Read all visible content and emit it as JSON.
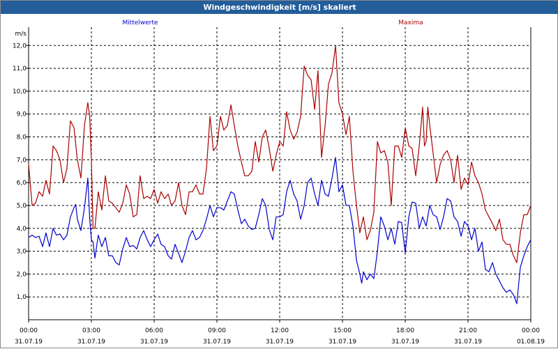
{
  "window": {
    "title": "Windgeschwindigkeit [m/s] skaliert"
  },
  "chart_data": {
    "type": "line",
    "title": "Windgeschwindigkeit [m/s] skaliert",
    "ylabel": "m/s",
    "ylim": [
      0,
      12.8
    ],
    "yticks": [
      1.0,
      2.0,
      3.0,
      4.0,
      5.0,
      6.0,
      7.0,
      8.0,
      9.0,
      10.0,
      11.0,
      12.0
    ],
    "ytick_labels": [
      "1,0",
      "2,0",
      "3,0",
      "4,0",
      "5,0",
      "6,0",
      "7,0",
      "8,0",
      "9,0",
      "10,0",
      "11,0",
      "12,0"
    ],
    "xlim_hours": [
      0,
      24
    ],
    "grid": true,
    "x_ticks": [
      {
        "h": 0,
        "time": "00:00",
        "date": "31.07.19"
      },
      {
        "h": 3,
        "time": "03:00",
        "date": "31.07.19"
      },
      {
        "h": 6,
        "time": "06:00",
        "date": "31.07.19"
      },
      {
        "h": 9,
        "time": "09:00",
        "date": "31.07.19"
      },
      {
        "h": 12,
        "time": "12:00",
        "date": "31.07.19"
      },
      {
        "h": 15,
        "time": "15:00",
        "date": "31.07.19"
      },
      {
        "h": 18,
        "time": "18:00",
        "date": "31.07.19"
      },
      {
        "h": 21,
        "time": "21:00",
        "date": "31.07.19"
      },
      {
        "h": 24,
        "time": "00:00",
        "date": "01.08.19"
      }
    ],
    "series": [
      {
        "name": "Mittelwerte",
        "color": "#0000cc",
        "points": [
          [
            0.0,
            3.6
          ],
          [
            0.17,
            3.7
          ],
          [
            0.33,
            3.6
          ],
          [
            0.5,
            3.65
          ],
          [
            0.67,
            3.2
          ],
          [
            0.83,
            3.8
          ],
          [
            1.0,
            3.2
          ],
          [
            1.17,
            4.0
          ],
          [
            1.33,
            3.7
          ],
          [
            1.5,
            3.75
          ],
          [
            1.67,
            3.5
          ],
          [
            1.83,
            3.7
          ],
          [
            2.0,
            4.5
          ],
          [
            2.17,
            4.9
          ],
          [
            2.25,
            5.05
          ],
          [
            2.33,
            4.4
          ],
          [
            2.5,
            3.9
          ],
          [
            2.67,
            4.9
          ],
          [
            2.83,
            6.2
          ],
          [
            2.92,
            4.4
          ],
          [
            3.0,
            3.5
          ],
          [
            3.08,
            3.4
          ],
          [
            3.17,
            2.7
          ],
          [
            3.33,
            3.7
          ],
          [
            3.5,
            3.2
          ],
          [
            3.67,
            3.6
          ],
          [
            3.83,
            2.8
          ],
          [
            4.0,
            2.8
          ],
          [
            4.17,
            2.5
          ],
          [
            4.33,
            2.4
          ],
          [
            4.5,
            3.1
          ],
          [
            4.67,
            3.6
          ],
          [
            4.83,
            3.2
          ],
          [
            5.0,
            3.25
          ],
          [
            5.17,
            3.1
          ],
          [
            5.33,
            3.6
          ],
          [
            5.5,
            3.9
          ],
          [
            5.67,
            3.5
          ],
          [
            5.83,
            3.2
          ],
          [
            6.0,
            3.5
          ],
          [
            6.17,
            3.75
          ],
          [
            6.33,
            3.3
          ],
          [
            6.5,
            3.2
          ],
          [
            6.67,
            2.8
          ],
          [
            6.83,
            2.65
          ],
          [
            7.0,
            3.3
          ],
          [
            7.17,
            2.9
          ],
          [
            7.33,
            2.5
          ],
          [
            7.5,
            3.0
          ],
          [
            7.67,
            3.6
          ],
          [
            7.83,
            3.9
          ],
          [
            8.0,
            3.5
          ],
          [
            8.17,
            3.6
          ],
          [
            8.33,
            3.9
          ],
          [
            8.5,
            4.4
          ],
          [
            8.67,
            5.0
          ],
          [
            8.83,
            4.5
          ],
          [
            9.0,
            4.9
          ],
          [
            9.17,
            4.9
          ],
          [
            9.33,
            4.8
          ],
          [
            9.5,
            5.2
          ],
          [
            9.67,
            5.6
          ],
          [
            9.83,
            5.5
          ],
          [
            10.0,
            4.8
          ],
          [
            10.17,
            4.2
          ],
          [
            10.33,
            4.4
          ],
          [
            10.5,
            4.1
          ],
          [
            10.67,
            3.95
          ],
          [
            10.83,
            4.0
          ],
          [
            11.0,
            4.6
          ],
          [
            11.17,
            5.3
          ],
          [
            11.33,
            5.0
          ],
          [
            11.5,
            3.95
          ],
          [
            11.67,
            3.5
          ],
          [
            11.83,
            4.5
          ],
          [
            12.0,
            4.5
          ],
          [
            12.17,
            4.6
          ],
          [
            12.33,
            5.6
          ],
          [
            12.5,
            6.1
          ],
          [
            12.67,
            5.5
          ],
          [
            12.83,
            5.2
          ],
          [
            13.0,
            4.4
          ],
          [
            13.17,
            5.0
          ],
          [
            13.33,
            6.0
          ],
          [
            13.5,
            6.2
          ],
          [
            13.67,
            5.5
          ],
          [
            13.83,
            5.0
          ],
          [
            14.0,
            6.1
          ],
          [
            14.17,
            5.5
          ],
          [
            14.33,
            5.4
          ],
          [
            14.5,
            6.2
          ],
          [
            14.67,
            7.1
          ],
          [
            14.83,
            5.6
          ],
          [
            15.0,
            5.9
          ],
          [
            15.17,
            5.0
          ],
          [
            15.33,
            5.0
          ],
          [
            15.5,
            4.1
          ],
          [
            15.67,
            2.6
          ],
          [
            15.83,
            2.0
          ],
          [
            15.92,
            1.6
          ],
          [
            16.0,
            2.1
          ],
          [
            16.17,
            1.75
          ],
          [
            16.33,
            2.0
          ],
          [
            16.5,
            1.8
          ],
          [
            16.67,
            3.0
          ],
          [
            16.83,
            4.5
          ],
          [
            17.0,
            4.1
          ],
          [
            17.17,
            3.5
          ],
          [
            17.33,
            4.0
          ],
          [
            17.5,
            3.3
          ],
          [
            17.67,
            4.3
          ],
          [
            17.83,
            4.25
          ],
          [
            18.0,
            2.9
          ],
          [
            18.17,
            4.5
          ],
          [
            18.33,
            5.15
          ],
          [
            18.5,
            5.1
          ],
          [
            18.67,
            4.0
          ],
          [
            18.83,
            4.5
          ],
          [
            19.0,
            4.1
          ],
          [
            19.17,
            5.0
          ],
          [
            19.33,
            4.6
          ],
          [
            19.5,
            4.5
          ],
          [
            19.67,
            3.95
          ],
          [
            19.83,
            4.5
          ],
          [
            20.0,
            5.3
          ],
          [
            20.17,
            5.2
          ],
          [
            20.33,
            4.5
          ],
          [
            20.5,
            4.3
          ],
          [
            20.67,
            3.65
          ],
          [
            20.83,
            4.3
          ],
          [
            21.0,
            4.1
          ],
          [
            21.17,
            3.5
          ],
          [
            21.33,
            4.0
          ],
          [
            21.5,
            3.0
          ],
          [
            21.67,
            3.4
          ],
          [
            21.83,
            2.2
          ],
          [
            22.0,
            2.1
          ],
          [
            22.17,
            2.5
          ],
          [
            22.33,
            2.0
          ],
          [
            22.5,
            1.7
          ],
          [
            22.67,
            1.4
          ],
          [
            22.83,
            1.2
          ],
          [
            23.0,
            1.3
          ],
          [
            23.17,
            1.1
          ],
          [
            23.33,
            0.7
          ],
          [
            23.5,
            2.3
          ],
          [
            23.67,
            2.8
          ],
          [
            23.83,
            3.2
          ],
          [
            24.0,
            3.5
          ]
        ]
      },
      {
        "name": "Maxima",
        "color": "#aa0000",
        "points": [
          [
            0.0,
            6.8
          ],
          [
            0.17,
            5.0
          ],
          [
            0.33,
            5.1
          ],
          [
            0.5,
            5.6
          ],
          [
            0.67,
            5.4
          ],
          [
            0.83,
            6.1
          ],
          [
            1.0,
            5.5
          ],
          [
            1.17,
            7.6
          ],
          [
            1.33,
            7.4
          ],
          [
            1.5,
            7.0
          ],
          [
            1.67,
            6.0
          ],
          [
            1.83,
            6.6
          ],
          [
            2.0,
            8.7
          ],
          [
            2.17,
            8.4
          ],
          [
            2.33,
            7.0
          ],
          [
            2.5,
            6.2
          ],
          [
            2.67,
            8.5
          ],
          [
            2.83,
            9.5
          ],
          [
            2.92,
            8.9
          ],
          [
            3.0,
            7.0
          ],
          [
            3.08,
            4.0
          ],
          [
            3.17,
            4.0
          ],
          [
            3.33,
            5.6
          ],
          [
            3.5,
            4.8
          ],
          [
            3.67,
            6.3
          ],
          [
            3.83,
            5.2
          ],
          [
            4.0,
            5.1
          ],
          [
            4.17,
            4.9
          ],
          [
            4.33,
            4.7
          ],
          [
            4.5,
            5.1
          ],
          [
            4.67,
            5.9
          ],
          [
            4.83,
            5.5
          ],
          [
            5.0,
            4.5
          ],
          [
            5.17,
            4.6
          ],
          [
            5.33,
            6.3
          ],
          [
            5.5,
            5.3
          ],
          [
            5.67,
            5.4
          ],
          [
            5.83,
            5.3
          ],
          [
            6.0,
            5.7
          ],
          [
            6.17,
            5.1
          ],
          [
            6.33,
            5.6
          ],
          [
            6.5,
            5.3
          ],
          [
            6.67,
            5.5
          ],
          [
            6.83,
            5.0
          ],
          [
            7.0,
            5.2
          ],
          [
            7.17,
            6.0
          ],
          [
            7.33,
            5.0
          ],
          [
            7.5,
            4.6
          ],
          [
            7.67,
            5.6
          ],
          [
            7.83,
            5.6
          ],
          [
            8.0,
            5.9
          ],
          [
            8.17,
            5.5
          ],
          [
            8.33,
            5.5
          ],
          [
            8.5,
            6.6
          ],
          [
            8.67,
            8.9
          ],
          [
            8.83,
            7.4
          ],
          [
            9.0,
            7.6
          ],
          [
            9.17,
            8.9
          ],
          [
            9.33,
            8.3
          ],
          [
            9.5,
            8.5
          ],
          [
            9.67,
            9.4
          ],
          [
            9.83,
            8.5
          ],
          [
            10.0,
            7.6
          ],
          [
            10.17,
            6.9
          ],
          [
            10.33,
            6.3
          ],
          [
            10.5,
            6.3
          ],
          [
            10.67,
            6.5
          ],
          [
            10.83,
            7.8
          ],
          [
            11.0,
            6.9
          ],
          [
            11.17,
            8.0
          ],
          [
            11.33,
            8.3
          ],
          [
            11.5,
            7.5
          ],
          [
            11.67,
            6.5
          ],
          [
            11.83,
            7.2
          ],
          [
            12.0,
            7.8
          ],
          [
            12.17,
            7.6
          ],
          [
            12.33,
            9.1
          ],
          [
            12.5,
            8.3
          ],
          [
            12.67,
            7.9
          ],
          [
            12.83,
            8.2
          ],
          [
            13.0,
            8.9
          ],
          [
            13.17,
            11.1
          ],
          [
            13.33,
            10.7
          ],
          [
            13.5,
            10.5
          ],
          [
            13.67,
            9.2
          ],
          [
            13.83,
            10.9
          ],
          [
            14.0,
            7.1
          ],
          [
            14.17,
            8.5
          ],
          [
            14.33,
            10.3
          ],
          [
            14.5,
            10.8
          ],
          [
            14.67,
            12.0
          ],
          [
            14.83,
            9.5
          ],
          [
            15.0,
            9.0
          ],
          [
            15.17,
            8.1
          ],
          [
            15.33,
            8.9
          ],
          [
            15.5,
            6.5
          ],
          [
            15.67,
            5.0
          ],
          [
            15.83,
            3.8
          ],
          [
            16.0,
            4.5
          ],
          [
            16.17,
            3.5
          ],
          [
            16.33,
            3.9
          ],
          [
            16.5,
            4.7
          ],
          [
            16.67,
            7.8
          ],
          [
            16.83,
            7.3
          ],
          [
            17.0,
            7.4
          ],
          [
            17.17,
            6.9
          ],
          [
            17.33,
            5.0
          ],
          [
            17.5,
            7.6
          ],
          [
            17.67,
            7.6
          ],
          [
            17.83,
            7.1
          ],
          [
            18.0,
            8.4
          ],
          [
            18.17,
            7.6
          ],
          [
            18.33,
            7.5
          ],
          [
            18.5,
            6.3
          ],
          [
            18.67,
            7.6
          ],
          [
            18.83,
            9.3
          ],
          [
            18.92,
            7.6
          ],
          [
            19.0,
            7.8
          ],
          [
            19.08,
            9.3
          ],
          [
            19.17,
            8.5
          ],
          [
            19.33,
            7.3
          ],
          [
            19.5,
            6.0
          ],
          [
            19.67,
            6.8
          ],
          [
            19.83,
            7.2
          ],
          [
            20.0,
            7.4
          ],
          [
            20.17,
            7.0
          ],
          [
            20.33,
            6.0
          ],
          [
            20.5,
            7.2
          ],
          [
            20.67,
            5.7
          ],
          [
            20.83,
            6.2
          ],
          [
            21.0,
            5.9
          ],
          [
            21.17,
            6.9
          ],
          [
            21.33,
            6.3
          ],
          [
            21.5,
            6.0
          ],
          [
            21.67,
            5.5
          ],
          [
            21.83,
            4.8
          ],
          [
            22.0,
            4.5
          ],
          [
            22.17,
            4.2
          ],
          [
            22.33,
            3.9
          ],
          [
            22.5,
            4.4
          ],
          [
            22.67,
            3.5
          ],
          [
            22.83,
            3.3
          ],
          [
            23.0,
            3.3
          ],
          [
            23.17,
            2.8
          ],
          [
            23.33,
            2.5
          ],
          [
            23.5,
            3.8
          ],
          [
            23.67,
            4.6
          ],
          [
            23.83,
            4.6
          ],
          [
            24.0,
            5.0
          ]
        ]
      }
    ]
  }
}
